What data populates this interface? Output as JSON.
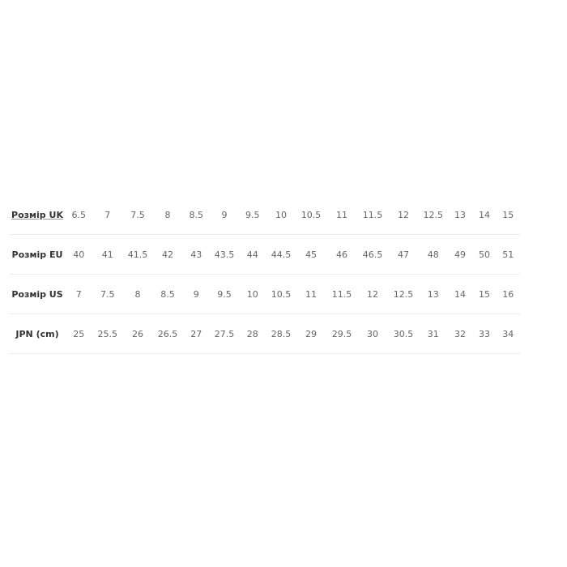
{
  "size_table": {
    "rows": [
      {
        "label": "Розмір UK",
        "values": [
          "6.5",
          "7",
          "7.5",
          "8",
          "8.5",
          "9",
          "9.5",
          "10",
          "10.5",
          "11",
          "11.5",
          "12",
          "12.5",
          "13",
          "14",
          "15"
        ]
      },
      {
        "label": "Розмір EU",
        "values": [
          "40",
          "41",
          "41.5",
          "42",
          "43",
          "43.5",
          "44",
          "44.5",
          "45",
          "46",
          "46.5",
          "47",
          "48",
          "49",
          "50",
          "51"
        ]
      },
      {
        "label": "Розмір US",
        "values": [
          "7",
          "7.5",
          "8",
          "8.5",
          "9",
          "9.5",
          "10",
          "10.5",
          "11",
          "11.5",
          "12",
          "12.5",
          "13",
          "14",
          "15",
          "16"
        ]
      },
      {
        "label": "JPN (cm)",
        "values": [
          "25",
          "25.5",
          "26",
          "26.5",
          "27",
          "27.5",
          "28",
          "28.5",
          "29",
          "29.5",
          "30",
          "30.5",
          "31",
          "32",
          "33",
          "34"
        ]
      }
    ]
  }
}
